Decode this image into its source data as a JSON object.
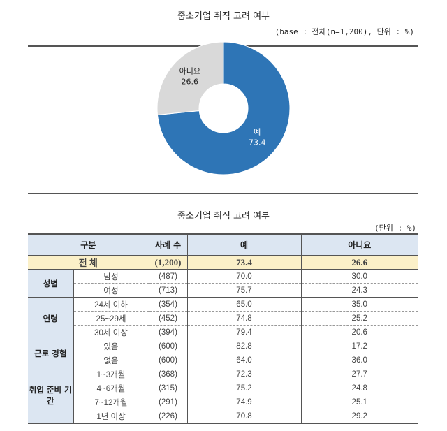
{
  "chart_title": "중소기업 취직 고려 여부",
  "base_note": "(base : 전체(n=1,200), 단위 : %)",
  "chart_data": {
    "type": "pie",
    "donut": true,
    "title": "중소기업 취직 고려 여부",
    "slices": [
      {
        "label": "예",
        "value": 73.4,
        "color": "#2e75b6"
      },
      {
        "label": "아니요",
        "value": 26.6,
        "color": "#d9d9d9"
      }
    ]
  },
  "table_title": "중소기업 취직 고려 여부",
  "unit_note": "(단위 : %)",
  "table": {
    "headers": [
      "구분",
      "사례 수",
      "예",
      "아니요"
    ],
    "total": {
      "label": "전  체",
      "n": "(1,200)",
      "yes": "73.4",
      "no": "26.6"
    },
    "groups": [
      {
        "name": "성별",
        "rows": [
          {
            "label": "남성",
            "n": "(487)",
            "yes": "70.0",
            "no": "30.0"
          },
          {
            "label": "여성",
            "n": "(713)",
            "yes": "75.7",
            "no": "24.3"
          }
        ]
      },
      {
        "name": "연령",
        "rows": [
          {
            "label": "24세 이하",
            "n": "(354)",
            "yes": "65.0",
            "no": "35.0"
          },
          {
            "label": "25~29세",
            "n": "(452)",
            "yes": "74.8",
            "no": "25.2"
          },
          {
            "label": "30세 이상",
            "n": "(394)",
            "yes": "79.4",
            "no": "20.6"
          }
        ]
      },
      {
        "name": "근로 경험",
        "rows": [
          {
            "label": "있음",
            "n": "(600)",
            "yes": "82.8",
            "no": "17.2"
          },
          {
            "label": "없음",
            "n": "(600)",
            "yes": "64.0",
            "no": "36.0"
          }
        ]
      },
      {
        "name": "취업 준비 기간",
        "rows": [
          {
            "label": "1~3개월",
            "n": "(368)",
            "yes": "72.3",
            "no": "27.7"
          },
          {
            "label": "4~6개월",
            "n": "(315)",
            "yes": "75.2",
            "no": "24.8"
          },
          {
            "label": "7~12개월",
            "n": "(291)",
            "yes": "74.9",
            "no": "25.1"
          },
          {
            "label": "1년 이상",
            "n": "(226)",
            "yes": "70.8",
            "no": "29.2"
          }
        ]
      }
    ]
  }
}
